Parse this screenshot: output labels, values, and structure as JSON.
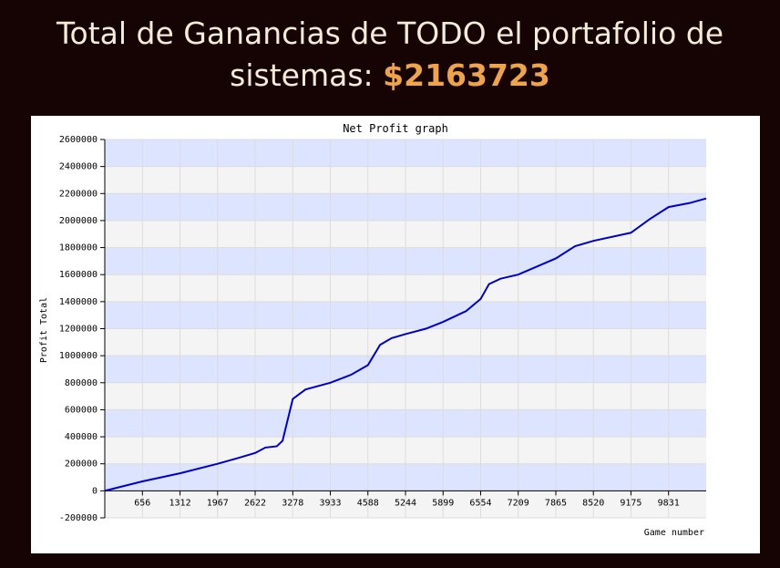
{
  "header": {
    "text": "Total de Ganancias de TODO el portafolio de sistemas:",
    "amount": "$2163723"
  },
  "chart_data": {
    "type": "line",
    "title": "Net Profit graph",
    "x_label": "Game number",
    "y_label": "Profit Total",
    "x": [
      0,
      656,
      1312,
      1967,
      2300,
      2622,
      2800,
      3000,
      3100,
      3278,
      3500,
      3933,
      4300,
      4588,
      4800,
      5000,
      5244,
      5600,
      5899,
      6300,
      6554,
      6700,
      6900,
      7209,
      7865,
      8200,
      8520,
      9175,
      9500,
      9831,
      10200,
      10487
    ],
    "series": [
      {
        "name": "Profit Total",
        "color": "#0000cc",
        "values": [
          0,
          70000,
          130000,
          200000,
          240000,
          280000,
          320000,
          330000,
          370000,
          680000,
          750000,
          800000,
          860000,
          930000,
          1080000,
          1130000,
          1160000,
          1200000,
          1250000,
          1330000,
          1420000,
          1530000,
          1570000,
          1600000,
          1720000,
          1810000,
          1850000,
          1910000,
          2010000,
          2100000,
          2130000,
          2163723
        ]
      }
    ],
    "xlim": [
      0,
      10487
    ],
    "xticks": [
      656,
      1312,
      1967,
      2622,
      3278,
      3933,
      4588,
      5244,
      5899,
      6554,
      7209,
      7865,
      8520,
      9175,
      9831
    ],
    "ylim": [
      -200000,
      2600000
    ],
    "yticks": [
      -200000,
      0,
      200000,
      400000,
      600000,
      800000,
      1000000,
      1200000,
      1400000,
      1600000,
      1800000,
      2000000,
      2200000,
      2400000,
      2600000
    ],
    "band_colors": [
      "#dde4ff",
      "#f4f4f4"
    ],
    "grid": true
  }
}
